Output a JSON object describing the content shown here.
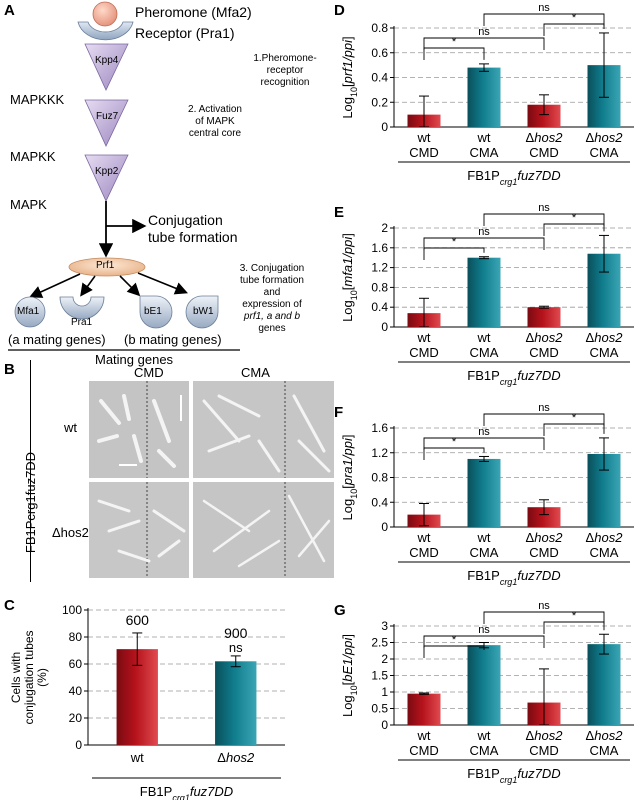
{
  "panels": {
    "A": {
      "label": "A",
      "pheromone": "Pheromone (Mfa2)",
      "receptor": "Receptor (Pra1)",
      "step1": [
        "1.Pheromone-",
        "receptor",
        "recognition"
      ],
      "mapkkk": "MAPKKK",
      "mapkk": "MAPKK",
      "mapk": "MAPK",
      "kpp4": "Kpp4",
      "fuz7": "Fuz7",
      "kpp2": "Kpp2",
      "step2": [
        "2. Activation",
        "of MAPK",
        "central core"
      ],
      "conj": [
        "Conjugation",
        "tube formation"
      ],
      "prf1": "Prf1",
      "step3": [
        "3. Conjugation",
        "tube formation",
        "and",
        "expression of",
        "prf1, a and b",
        "genes"
      ],
      "mfa1": "Mfa1",
      "pra1": "Pra1",
      "be1": "bE1",
      "bw1": "bW1",
      "a_genes": "(a mating genes)",
      "b_genes": "(b mating genes)",
      "mating": "Mating genes"
    },
    "B": {
      "label": "B",
      "cmd": "CMD",
      "cma": "CMA",
      "wt": "wt",
      "hos2": "Δhos2",
      "strain": "FB1Pcrg1fuz7DD"
    },
    "C": {
      "label": "C"
    },
    "D": {
      "label": "D"
    },
    "E": {
      "label": "E"
    },
    "F": {
      "label": "F"
    },
    "G": {
      "label": "G"
    }
  },
  "colors": {
    "red": "#b5121b",
    "teal": "#0f7c8c",
    "grid": "#999999"
  },
  "chart_data": [
    {
      "id": "C",
      "type": "bar",
      "ylabel": "Cells with conjugation tubes (%)",
      "categories": [
        "wt",
        "Δhos2"
      ],
      "values": [
        71,
        62
      ],
      "errors": [
        12,
        4
      ],
      "ylim": [
        0,
        100
      ],
      "yticks": [
        0,
        20,
        40,
        60,
        80,
        100
      ],
      "bar_labels": [
        "600",
        "900"
      ],
      "annotations": [
        "ns"
      ],
      "xgroup": "FB1Pcrg1fuz7DD",
      "grid": true
    },
    {
      "id": "D",
      "type": "bar",
      "ylabel": "Log10[prf1/ppi]",
      "categories": [
        [
          "wt",
          "CMD"
        ],
        [
          "wt",
          "CMA"
        ],
        [
          "Δhos2",
          "CMD"
        ],
        [
          "Δhos2",
          "CMA"
        ]
      ],
      "values": [
        0.1,
        0.48,
        0.18,
        0.5
      ],
      "errors": [
        0.15,
        0.03,
        0.08,
        0.26
      ],
      "ylim": [
        0,
        0.8
      ],
      "yticks": [
        "0",
        "0.2",
        "0.4",
        "0.6",
        "0.8"
      ],
      "brackets": [
        [
          "1",
          "2",
          "*"
        ],
        [
          "1",
          "3",
          "ns"
        ],
        [
          "2",
          "4",
          "ns"
        ],
        [
          "3",
          "4",
          "*"
        ]
      ],
      "xgroup": "FB1Pcrg1fuz7DD",
      "grid": true
    },
    {
      "id": "E",
      "type": "bar",
      "ylabel": "Log10[mfa1/ppi]",
      "categories": [
        [
          "wt",
          "CMD"
        ],
        [
          "wt",
          "CMA"
        ],
        [
          "Δhos2",
          "CMD"
        ],
        [
          "Δhos2",
          "CMA"
        ]
      ],
      "values": [
        0.28,
        1.4,
        0.4,
        1.48
      ],
      "errors": [
        0.3,
        0.02,
        0.02,
        0.37
      ],
      "ylim": [
        0,
        2
      ],
      "yticks": [
        "0",
        "0.4",
        "0.8",
        "1.2",
        "1.6",
        "2"
      ],
      "brackets": [
        [
          "1",
          "2",
          "*"
        ],
        [
          "1",
          "3",
          "ns"
        ],
        [
          "2",
          "4",
          "ns"
        ],
        [
          "3",
          "4",
          "*"
        ]
      ],
      "xgroup": "FB1Pcrg1fuz7DD",
      "grid": true
    },
    {
      "id": "F",
      "type": "bar",
      "ylabel": "Log10[pra1/ppi]",
      "categories": [
        [
          "wt",
          "CMD"
        ],
        [
          "wt",
          "CMA"
        ],
        [
          "Δhos2",
          "CMD"
        ],
        [
          "Δhos2",
          "CMA"
        ]
      ],
      "values": [
        0.2,
        1.1,
        0.32,
        1.18
      ],
      "errors": [
        0.18,
        0.04,
        0.12,
        0.26
      ],
      "ylim": [
        0,
        1.6
      ],
      "yticks": [
        "0",
        "0.4",
        "0.8",
        "1.2",
        "1.6"
      ],
      "brackets": [
        [
          "1",
          "2",
          "*"
        ],
        [
          "1",
          "3",
          "ns"
        ],
        [
          "2",
          "4",
          "ns"
        ],
        [
          "3",
          "4",
          "*"
        ]
      ],
      "xgroup": "FB1Pcrg1fuz7DD",
      "grid": true
    },
    {
      "id": "G",
      "type": "bar",
      "ylabel": "Log10[bE1/ppi]",
      "categories": [
        [
          "wt",
          "CMD"
        ],
        [
          "wt",
          "CMA"
        ],
        [
          "Δhos2",
          "CMD"
        ],
        [
          "Δhos2",
          "CMA"
        ]
      ],
      "values": [
        0.95,
        2.42,
        0.68,
        2.45
      ],
      "errors": [
        0.02,
        0.08,
        1.02,
        0.3
      ],
      "ylim": [
        0,
        3
      ],
      "yticks": [
        "0",
        "0.5",
        "1",
        "1.5",
        "2",
        "2.5",
        "3"
      ],
      "brackets": [
        [
          "1",
          "2",
          "*"
        ],
        [
          "1",
          "3",
          "ns"
        ],
        [
          "2",
          "4",
          "ns"
        ],
        [
          "3",
          "4",
          "*"
        ]
      ],
      "xgroup": "FB1Pcrg1fuz7DD",
      "grid": true
    }
  ]
}
